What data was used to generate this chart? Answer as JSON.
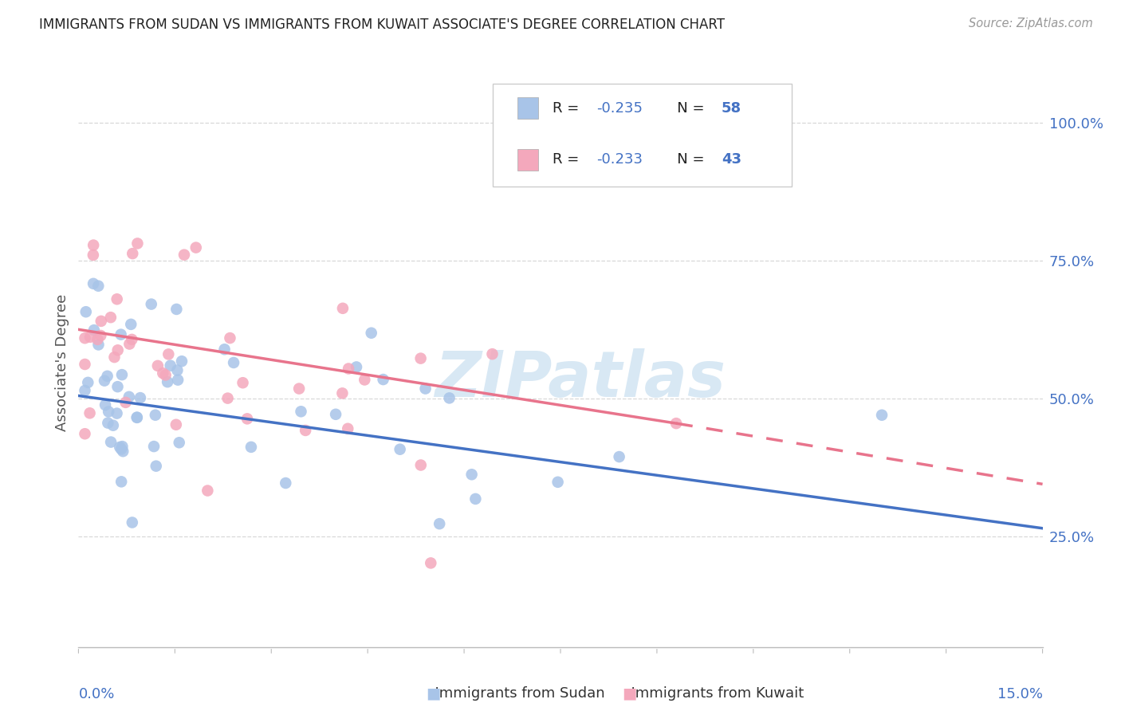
{
  "title": "IMMIGRANTS FROM SUDAN VS IMMIGRANTS FROM KUWAIT ASSOCIATE'S DEGREE CORRELATION CHART",
  "source": "Source: ZipAtlas.com",
  "ylabel": "Associate's Degree",
  "right_yticks": [
    "25.0%",
    "50.0%",
    "75.0%",
    "100.0%"
  ],
  "right_ytick_vals": [
    0.25,
    0.5,
    0.75,
    1.0
  ],
  "xmin": 0.0,
  "xmax": 0.15,
  "ymin": 0.05,
  "ymax": 1.08,
  "legend_R_sudan": "-0.235",
  "legend_N_sudan": "58",
  "legend_R_kuwait": "-0.233",
  "legend_N_kuwait": "43",
  "color_sudan": "#a8c4e8",
  "color_kuwait": "#f4a8bc",
  "trendline_sudan_color": "#4472c4",
  "trendline_kuwait_color": "#e8748c",
  "watermark": "ZIPatlas",
  "watermark_color": "#d8e8f4",
  "grid_color": "#d8d8d8",
  "bg_color": "#ffffff",
  "title_color": "#222222",
  "source_color": "#999999",
  "axis_label_color": "#4472c4",
  "ylabel_color": "#555555",
  "legend_text_color": "#222222",
  "legend_value_color": "#4472c4",
  "bottom_legend_text_color": "#333333"
}
